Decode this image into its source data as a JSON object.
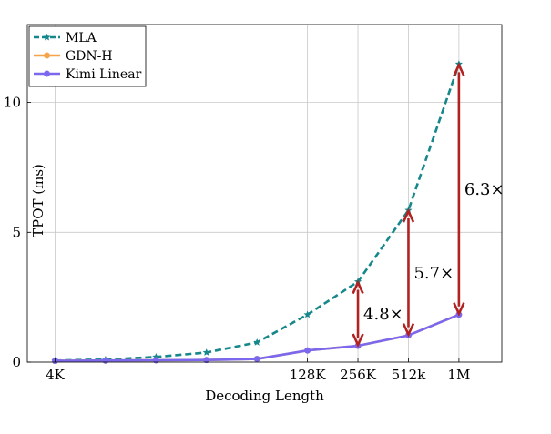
{
  "chart_data": {
    "type": "line",
    "xlabel": "Decoding Length",
    "ylabel": "TPOT (ms)",
    "x_ticks": [
      {
        "pos": 0,
        "label": "4K"
      },
      {
        "pos": 5,
        "label": "128K"
      },
      {
        "pos": 6,
        "label": "256K"
      },
      {
        "pos": 7,
        "label": "512k"
      },
      {
        "pos": 8,
        "label": "1M"
      }
    ],
    "y_ticks": [
      0,
      5,
      10
    ],
    "xlim": [
      -0.55,
      8.85
    ],
    "ylim": [
      0,
      13
    ],
    "grid": true,
    "legend_position": "top-left",
    "x": [
      0,
      1,
      2,
      3,
      4,
      5,
      6,
      7,
      8
    ],
    "series": [
      {
        "name": "MLA",
        "color": "#16878a",
        "style": "dashed",
        "marker": "star",
        "values": [
          0.06,
          0.1,
          0.2,
          0.37,
          0.76,
          1.83,
          3.1,
          5.85,
          11.48
        ]
      },
      {
        "name": "GDN-H",
        "color": "#f5a44b",
        "style": "solid",
        "marker": "circle",
        "values": [
          0.05,
          0.06,
          0.07,
          0.08,
          0.12,
          0.45,
          0.63,
          1.03,
          1.83
        ]
      },
      {
        "name": "Kimi Linear",
        "color": "#7b68ee",
        "style": "solid",
        "marker": "circle",
        "values": [
          0.05,
          0.06,
          0.07,
          0.08,
          0.12,
          0.45,
          0.63,
          1.03,
          1.83
        ]
      }
    ],
    "annotations": [
      {
        "x": 6,
        "y_from": 3.1,
        "y_to": 0.63,
        "label": "4.8×",
        "color": "#b22222"
      },
      {
        "x": 7,
        "y_from": 5.85,
        "y_to": 1.03,
        "label": "5.7×",
        "color": "#b22222"
      },
      {
        "x": 8,
        "y_from": 11.48,
        "y_to": 1.83,
        "label": "6.3×",
        "color": "#b22222"
      }
    ]
  }
}
